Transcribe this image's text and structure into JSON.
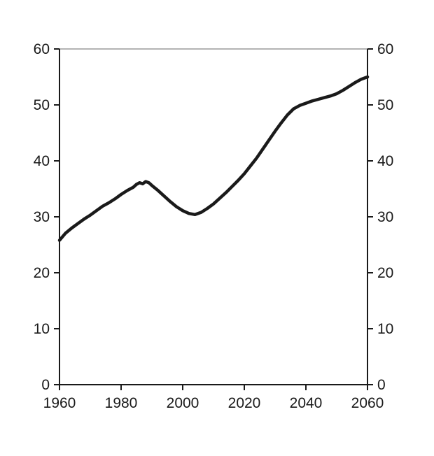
{
  "chart_data": {
    "type": "line",
    "title": "",
    "xlabel": "",
    "ylabel": "",
    "series_name": "projection-line",
    "x": [
      1960,
      1962,
      1964,
      1966,
      1968,
      1970,
      1972,
      1974,
      1976,
      1978,
      1980,
      1982,
      1984,
      1985,
      1986,
      1987,
      1988,
      1989,
      1990,
      1992,
      1994,
      1996,
      1998,
      2000,
      2002,
      2004,
      2006,
      2008,
      2010,
      2012,
      2014,
      2016,
      2018,
      2020,
      2022,
      2024,
      2026,
      2028,
      2030,
      2032,
      2034,
      2036,
      2038,
      2040,
      2042,
      2044,
      2046,
      2048,
      2050,
      2052,
      2054,
      2056,
      2058,
      2060
    ],
    "values": [
      25.8,
      27.1,
      28.0,
      28.8,
      29.6,
      30.3,
      31.1,
      31.9,
      32.5,
      33.2,
      34.0,
      34.7,
      35.3,
      35.8,
      36.1,
      35.9,
      36.3,
      36.1,
      35.6,
      34.7,
      33.7,
      32.7,
      31.8,
      31.1,
      30.6,
      30.4,
      30.8,
      31.5,
      32.3,
      33.3,
      34.3,
      35.4,
      36.5,
      37.7,
      39.1,
      40.5,
      42.1,
      43.7,
      45.3,
      46.8,
      48.2,
      49.3,
      49.9,
      50.3,
      50.7,
      51.0,
      51.3,
      51.6,
      52.0,
      52.6,
      53.3,
      54.0,
      54.6,
      55.0
    ],
    "xlim": [
      1960,
      2060
    ],
    "ylim": [
      0,
      60
    ],
    "x_ticks": [
      1960,
      1980,
      2000,
      2020,
      2040,
      2060
    ],
    "y_ticks_left": [
      0,
      10,
      20,
      30,
      40,
      50,
      60
    ],
    "y_ticks_right": [
      0,
      10,
      20,
      30,
      40,
      50,
      60
    ],
    "grid": "off",
    "legend": "none",
    "line_color": "#1a1a1a",
    "line_width": 4.5,
    "axis_color": "#1a1a1a",
    "top_border_color": "#b3b3b3",
    "background_color": "#ffffff"
  }
}
